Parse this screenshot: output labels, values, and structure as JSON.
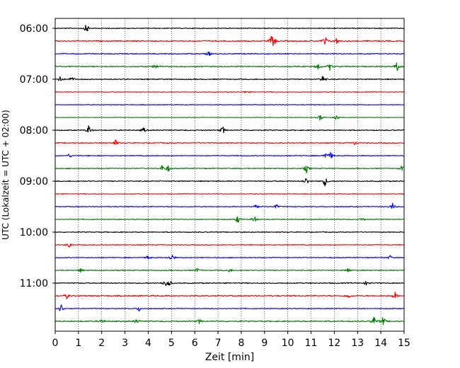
{
  "chart_data": {
    "type": "line",
    "title": "",
    "xlabel": "Zeit  [min]",
    "ylabel": "UTC (Lokalzeit = UTC + 02:00)",
    "xlim": [
      0,
      15
    ],
    "x_ticks": [
      "0",
      "1",
      "2",
      "3",
      "4",
      "5",
      "6",
      "7",
      "8",
      "9",
      "10",
      "11",
      "12",
      "13",
      "14",
      "15"
    ],
    "y_ticks": [
      "06:00",
      "07:00",
      "08:00",
      "09:00",
      "10:00",
      "11:00"
    ],
    "grid": "vertical dotted at each minute",
    "trace_interval_min": 15,
    "first_trace": "06:00",
    "color_cycle": [
      "#000000",
      "#ff0000",
      "#0000ff",
      "#008000"
    ],
    "series": [
      {
        "start": "06:00",
        "noise": 0.25,
        "events": [
          [
            1.35,
            1.0
          ]
        ]
      },
      {
        "start": "06:15",
        "noise": 0.35,
        "events": [
          [
            9.3,
            0.9
          ],
          [
            9.4,
            0.8
          ],
          [
            11.6,
            1.0
          ],
          [
            12.1,
            0.6
          ]
        ]
      },
      {
        "start": "06:30",
        "noise": 0.3,
        "events": [
          [
            6.6,
            0.5
          ]
        ]
      },
      {
        "start": "06:45",
        "noise": 0.35,
        "events": [
          [
            4.3,
            0.6
          ],
          [
            11.3,
            0.8
          ],
          [
            11.8,
            0.7
          ],
          [
            14.7,
            0.9
          ]
        ]
      },
      {
        "start": "07:00",
        "noise": 0.3,
        "events": [
          [
            0.2,
            0.9
          ],
          [
            0.7,
            0.6
          ],
          [
            11.5,
            0.8
          ]
        ]
      },
      {
        "start": "07:15",
        "noise": 0.2,
        "events": [
          [
            8.2,
            0.3
          ]
        ]
      },
      {
        "start": "07:30",
        "noise": 0.2,
        "events": []
      },
      {
        "start": "07:45",
        "noise": 0.15,
        "events": [
          [
            11.4,
            0.7
          ],
          [
            12.1,
            0.6
          ]
        ]
      },
      {
        "start": "08:00",
        "noise": 0.3,
        "events": [
          [
            1.45,
            1.0
          ],
          [
            7.2,
            0.8
          ],
          [
            3.8,
            0.5
          ]
        ]
      },
      {
        "start": "08:15",
        "noise": 0.3,
        "events": [
          [
            2.6,
            0.6
          ],
          [
            12.9,
            0.4
          ]
        ]
      },
      {
        "start": "08:30",
        "noise": 0.25,
        "events": [
          [
            0.6,
            0.4
          ],
          [
            11.6,
            0.7
          ],
          [
            11.85,
            0.7
          ]
        ]
      },
      {
        "start": "08:45",
        "noise": 0.3,
        "events": [
          [
            4.6,
            0.6
          ],
          [
            4.85,
            0.7
          ],
          [
            10.8,
            0.8
          ],
          [
            14.9,
            0.5
          ]
        ]
      },
      {
        "start": "09:00",
        "noise": 0.3,
        "events": [
          [
            10.8,
            0.8
          ],
          [
            11.6,
            1.0
          ]
        ]
      },
      {
        "start": "09:15",
        "noise": 0.2,
        "events": []
      },
      {
        "start": "09:30",
        "noise": 0.25,
        "events": [
          [
            8.6,
            0.7
          ],
          [
            9.5,
            0.5
          ],
          [
            14.5,
            0.7
          ]
        ]
      },
      {
        "start": "09:45",
        "noise": 0.25,
        "events": [
          [
            7.85,
            0.8
          ],
          [
            8.55,
            0.8
          ],
          [
            13.2,
            0.4
          ]
        ]
      },
      {
        "start": "10:00",
        "noise": 0.25,
        "events": []
      },
      {
        "start": "10:15",
        "noise": 0.25,
        "events": [
          [
            0.6,
            0.6
          ]
        ]
      },
      {
        "start": "10:30",
        "noise": 0.25,
        "events": [
          [
            4.0,
            0.5
          ],
          [
            5.0,
            1.0
          ],
          [
            14.4,
            0.4
          ]
        ]
      },
      {
        "start": "10:45",
        "noise": 0.3,
        "events": [
          [
            1.1,
            0.4
          ],
          [
            6.1,
            0.5
          ],
          [
            7.5,
            0.4
          ],
          [
            12.6,
            0.5
          ]
        ]
      },
      {
        "start": "11:00",
        "noise": 0.3,
        "events": [
          [
            4.7,
            0.8
          ],
          [
            4.9,
            0.8
          ],
          [
            13.4,
            0.6
          ]
        ]
      },
      {
        "start": "11:15",
        "noise": 0.35,
        "events": [
          [
            0.5,
            0.5
          ],
          [
            12.6,
            0.6
          ],
          [
            14.6,
            0.8
          ]
        ]
      },
      {
        "start": "11:30",
        "noise": 0.25,
        "events": [
          [
            0.25,
            0.9
          ],
          [
            3.6,
            0.5
          ]
        ]
      },
      {
        "start": "11:45",
        "noise": 0.35,
        "events": [
          [
            2.0,
            0.5
          ],
          [
            3.5,
            0.6
          ],
          [
            6.2,
            0.4
          ],
          [
            13.7,
            1.0
          ],
          [
            14.1,
            0.9
          ]
        ]
      }
    ]
  }
}
